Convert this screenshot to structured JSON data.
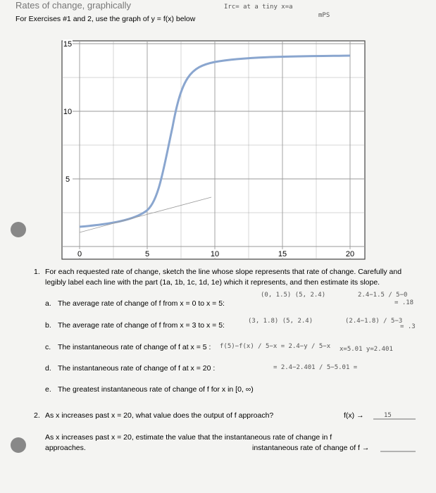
{
  "header": {
    "title": "Rates of change, graphically",
    "instruction": "For Exercises #1 and 2, use the graph of y = f(x) below"
  },
  "graph": {
    "xtick_labels": [
      "0",
      "5",
      "10",
      "15",
      "20"
    ],
    "ytick_labels": [
      "5",
      "10",
      "15"
    ]
  },
  "question1": {
    "number": "1.",
    "intro_line1": "For each requested rate of change, sketch the line whose slope represents that rate of change. Carefully and",
    "intro_line2": "legibly label each line with the part (1a, 1b, 1c, 1d, 1e) which it represents, and then estimate its slope.",
    "items": [
      {
        "label": "a.",
        "text": "The average rate of change of f from x = 0 to x = 5:"
      },
      {
        "label": "b.",
        "text": "The average rate of change of f from x = 3 to x = 5:"
      },
      {
        "label": "c.",
        "text": "The instantaneous rate of change of f at x = 5 :"
      },
      {
        "label": "d.",
        "text": "The instantaneous rate of change of f at x = 20 :"
      },
      {
        "label": "e.",
        "text": "The greatest instantaneous rate of change of f for x in [0, ∞)"
      }
    ]
  },
  "question2": {
    "number": "2.",
    "line1": "As x increases past x = 20, what value does the output of f approach?",
    "answer1": "f(x) →",
    "line2": "As x increases past x = 20, estimate the value that the instantaneous rate of change in f",
    "line3": "approaches.",
    "answer2": "instantaneous rate of change of f →"
  },
  "handwriting": {
    "top1": "Irc= at a tiny x=a",
    "top2": "mPS",
    "a_points": "(0, 1.5)  (5, 2.4)",
    "a_calc": "2.4−1.5 / 5−0",
    "a_result": "= .18",
    "b_points": "(3, 1.8)  (5, 2.4)",
    "b_calc": "(2.4−1.8) / 5−3",
    "b_result": "= .3",
    "c_calc": "f(5)−f(x) / 5−x  =  2.4−y / 5−x",
    "c_point": "x=5.01  y=2.401",
    "d_calc": "= 2.4−2.401 / 5−5.01 =",
    "q2_answer": "15"
  }
}
